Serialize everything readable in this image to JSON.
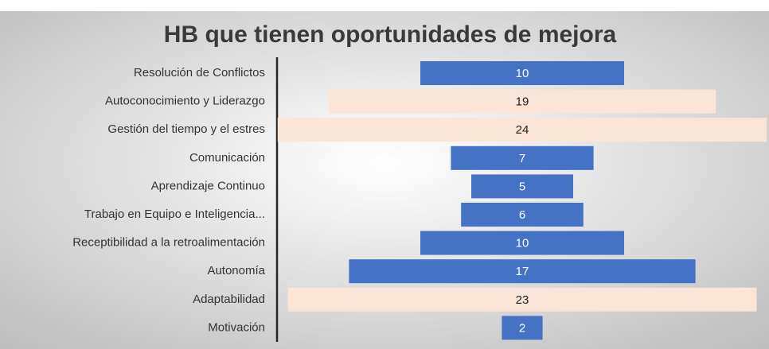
{
  "chart_data": {
    "type": "funnel",
    "title": "HB que tienen oportunidades de mejora",
    "categories": [
      "Resolución de Conflictos",
      "Autoconocimiento y Liderazgo",
      "Gestión del tiempo y el estres",
      "Comunicación",
      "Aprendizaje Continuo",
      "Trabajo en Equipo e Inteligencia...",
      "Receptibilidad a la retroalimentación",
      "Autonomía",
      "Adaptabilidad",
      "Motivación"
    ],
    "values": [
      10,
      19,
      24,
      7,
      5,
      6,
      10,
      17,
      23,
      2
    ],
    "colors": [
      "#4472c4",
      "#fbe5d6",
      "#fbe5d6",
      "#4472c4",
      "#4472c4",
      "#4472c4",
      "#4472c4",
      "#4472c4",
      "#fbe5d6",
      "#4472c4"
    ]
  }
}
